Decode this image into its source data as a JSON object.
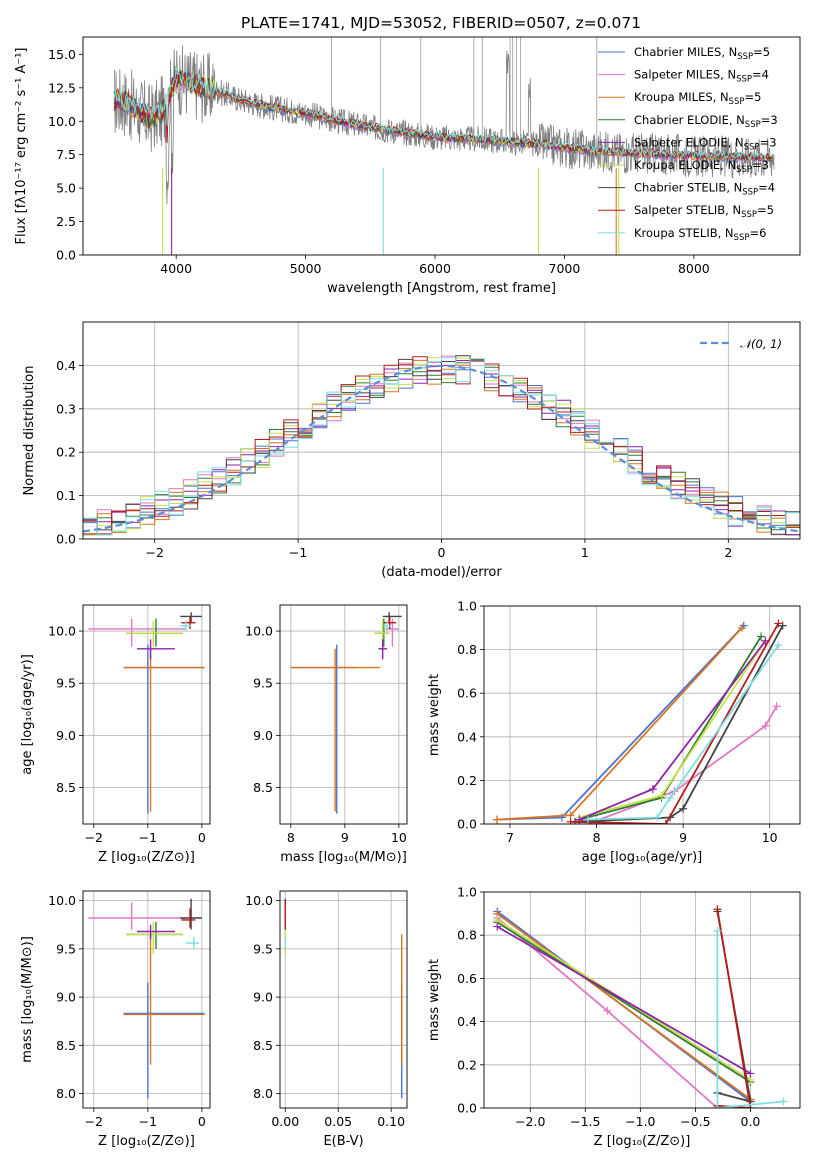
{
  "title": "PLATE=1741, MJD=53052, FIBERID=0507, z=0.071",
  "colors": {
    "Chabrier MILES": "#4c72d8",
    "Salpeter MILES": "#e377c2",
    "Kroupa MILES": "#d8751f",
    "Chabrier ELODIE": "#2e7d32",
    "Salpeter ELODIE": "#8e24aa",
    "Kroupa ELODIE": "#c5e04a",
    "Chabrier STELIB": "#444444",
    "Salpeter STELIB": "#b71c1c",
    "Kroupa STELIB": "#7fdde0"
  },
  "legend_models": [
    {
      "label": "Chabrier MILES, N",
      "sub": "SSP",
      "n": "=5"
    },
    {
      "label": "Salpeter MILES, N",
      "sub": "SSP",
      "n": "=4"
    },
    {
      "label": "Kroupa MILES, N",
      "sub": "SSP",
      "n": "=5"
    },
    {
      "label": "Chabrier ELODIE, N",
      "sub": "SSP",
      "n": "=3"
    },
    {
      "label": "Salpeter ELODIE, N",
      "sub": "SSP",
      "n": "=3"
    },
    {
      "label": "Kroupa ELODIE, N",
      "sub": "SSP",
      "n": "=3"
    },
    {
      "label": "Chabrier STELIB, N",
      "sub": "SSP",
      "n": "=4"
    },
    {
      "label": "Salpeter STELIB, N",
      "sub": "SSP",
      "n": "=5"
    },
    {
      "label": "Kroupa STELIB, N",
      "sub": "SSP",
      "n": "=6"
    }
  ],
  "chart_data": [
    {
      "id": "spectrum",
      "type": "line",
      "title": "PLATE=1741, MJD=53052, FIBERID=0507, z=0.071",
      "xlabel": "wavelength [Angstrom, rest frame]",
      "ylabel": "Flux [fλ10⁻¹⁷ erg cm⁻² s⁻¹ A⁻¹]",
      "xlim": [
        3280,
        8820
      ],
      "ylim": [
        0,
        16.3
      ],
      "xticks": [
        4000,
        5000,
        6000,
        7000,
        8000
      ],
      "yticks": [
        0.0,
        2.5,
        5.0,
        7.5,
        10.0,
        12.5,
        15.0
      ],
      "continuum": [
        [
          3600,
          11.5
        ],
        [
          3700,
          10.8
        ],
        [
          3800,
          10.2
        ],
        [
          3900,
          10.8
        ],
        [
          4000,
          13.2
        ],
        [
          4100,
          12.9
        ],
        [
          4300,
          12.3
        ],
        [
          4500,
          11.6
        ],
        [
          4700,
          11.1
        ],
        [
          5000,
          10.6
        ],
        [
          5300,
          9.9
        ],
        [
          5600,
          9.4
        ],
        [
          6000,
          8.8
        ],
        [
          6400,
          8.6
        ],
        [
          6800,
          8.3
        ],
        [
          7200,
          7.8
        ],
        [
          7600,
          7.6
        ],
        [
          8000,
          7.4
        ],
        [
          8500,
          7.3
        ]
      ],
      "grid": false,
      "legend": "right"
    },
    {
      "id": "residuals",
      "type": "line",
      "xlabel": "(data-model)/error",
      "ylabel": "Normed distribution",
      "xlim": [
        -2.5,
        2.5
      ],
      "ylim": [
        0,
        0.5
      ],
      "xticks": [
        -2,
        -1,
        0,
        1,
        2
      ],
      "yticks": [
        0.0,
        0.1,
        0.2,
        0.3,
        0.4
      ],
      "normal_label": "𝒩(0, 1)",
      "grid": true,
      "legend": "top-right"
    },
    {
      "id": "age_vs_Z",
      "type": "scatter",
      "xlabel": "Z [log₁₀(Z/Z⊙)]",
      "ylabel": "age  [log₁₀(age/yr)]",
      "xlim": [
        -2.2,
        0.15
      ],
      "ylim": [
        8.15,
        10.25
      ],
      "xticks": [
        -2,
        -1,
        0
      ],
      "yticks": [
        8.5,
        9.0,
        9.5,
        10.0
      ],
      "points": [
        {
          "m": "Chabrier MILES",
          "x": -1.0,
          "y": 9.65,
          "xe": [
            -1.45,
            0.05
          ],
          "ye": [
            8.25,
            9.87
          ]
        },
        {
          "m": "Kroupa MILES",
          "x": -0.95,
          "y": 9.65,
          "xe": [
            -1.45,
            0.05
          ],
          "ye": [
            8.27,
            9.85
          ]
        },
        {
          "m": "Salpeter MILES",
          "x": -1.3,
          "y": 10.02,
          "xe": [
            -2.1,
            -0.3
          ],
          "ye": [
            9.85,
            10.12
          ]
        },
        {
          "m": "Chabrier ELODIE",
          "x": -0.85,
          "y": 9.98,
          "xe": [
            -1.4,
            -0.35
          ],
          "ye": [
            9.85,
            10.12
          ]
        },
        {
          "m": "Kroupa ELODIE",
          "x": -0.9,
          "y": 9.98,
          "xe": [
            -1.4,
            -0.35
          ],
          "ye": [
            9.85,
            10.1
          ]
        },
        {
          "m": "Salpeter ELODIE",
          "x": -0.95,
          "y": 9.83,
          "xe": [
            -1.2,
            -0.5
          ],
          "ye": [
            9.73,
            9.92
          ]
        },
        {
          "m": "Chabrier STELIB",
          "x": -0.2,
          "y": 10.14,
          "xe": [
            -0.4,
            0.0
          ],
          "ye": [
            10.08,
            10.18
          ]
        },
        {
          "m": "Salpeter STELIB",
          "x": -0.22,
          "y": 10.08,
          "xe": [
            -0.38,
            -0.12
          ],
          "ye": [
            10.02,
            10.14
          ]
        },
        {
          "m": "Kroupa STELIB",
          "x": -0.3,
          "y": 10.05,
          "xe": [
            -0.4,
            -0.2
          ],
          "ye": [
            10.0,
            10.1
          ]
        }
      ]
    },
    {
      "id": "age_vs_mass",
      "type": "scatter",
      "xlabel": "mass [log₁₀(M/M⊙)]",
      "xlim": [
        7.8,
        10.15
      ],
      "ylim": [
        8.15,
        10.25
      ],
      "xticks": [
        8,
        9,
        10
      ],
      "yticks": [
        8.5,
        9.0,
        9.5,
        10.0
      ],
      "points": [
        {
          "m": "Chabrier MILES",
          "x": 8.85,
          "y": 9.65,
          "xe": [
            8.0,
            9.2
          ],
          "ye": [
            8.25,
            9.87
          ]
        },
        {
          "m": "Kroupa MILES",
          "x": 8.82,
          "y": 9.65,
          "xe": [
            8.0,
            9.65
          ],
          "ye": [
            8.27,
            9.83
          ]
        },
        {
          "m": "Salpeter MILES",
          "x": 9.88,
          "y": 10.02,
          "xe": [
            9.75,
            10.0
          ],
          "ye": [
            9.85,
            10.12
          ]
        },
        {
          "m": "Chabrier ELODIE",
          "x": 9.72,
          "y": 9.98,
          "xe": [
            9.55,
            9.82
          ],
          "ye": [
            9.85,
            10.12
          ]
        },
        {
          "m": "Kroupa ELODIE",
          "x": 9.7,
          "y": 9.98,
          "xe": [
            9.55,
            9.82
          ],
          "ye": [
            9.85,
            10.1
          ]
        },
        {
          "m": "Salpeter ELODIE",
          "x": 9.7,
          "y": 9.83,
          "xe": [
            9.62,
            9.78
          ],
          "ye": [
            9.73,
            9.92
          ]
        },
        {
          "m": "Chabrier STELIB",
          "x": 9.82,
          "y": 10.14,
          "xe": [
            9.7,
            10.05
          ],
          "ye": [
            10.08,
            10.18
          ]
        },
        {
          "m": "Salpeter STELIB",
          "x": 9.83,
          "y": 10.08,
          "xe": [
            9.72,
            9.95
          ],
          "ye": [
            10.02,
            10.14
          ]
        },
        {
          "m": "Kroupa STELIB",
          "x": 9.78,
          "y": 10.05,
          "xe": [
            9.72,
            9.85
          ],
          "ye": [
            10.0,
            10.1
          ]
        }
      ]
    },
    {
      "id": "weight_vs_age",
      "type": "line",
      "xlabel": "age  [log₁₀(age/yr)]",
      "ylabel": "mass weight",
      "xlim": [
        6.7,
        10.35
      ],
      "ylim": [
        0,
        1.0
      ],
      "xticks": [
        7,
        8,
        9,
        10
      ],
      "yticks": [
        0.0,
        0.2,
        0.4,
        0.6,
        0.8,
        1.0
      ],
      "series": [
        {
          "m": "Chabrier MILES",
          "x": [
            6.85,
            7.6,
            9.7
          ],
          "y": [
            0.02,
            0.03,
            0.91
          ]
        },
        {
          "m": "Kroupa MILES",
          "x": [
            6.85,
            7.7,
            9.68
          ],
          "y": [
            0.02,
            0.04,
            0.9
          ]
        },
        {
          "m": "Salpeter MILES",
          "x": [
            7.9,
            8.9,
            9.95,
            10.08
          ],
          "y": [
            0.0,
            0.15,
            0.45,
            0.54
          ]
        },
        {
          "m": "Chabrier ELODIE",
          "x": [
            7.8,
            8.75,
            9.9
          ],
          "y": [
            0.02,
            0.12,
            0.86
          ]
        },
        {
          "m": "Kroupa ELODIE",
          "x": [
            7.8,
            8.75,
            9.95
          ],
          "y": [
            0.03,
            0.13,
            0.84
          ]
        },
        {
          "m": "Salpeter ELODIE",
          "x": [
            7.8,
            8.65,
            9.95
          ],
          "y": [
            0.02,
            0.16,
            0.84
          ]
        },
        {
          "m": "Chabrier STELIB",
          "x": [
            7.75,
            8.85,
            9.0,
            10.15
          ],
          "y": [
            0.01,
            0.03,
            0.07,
            0.91
          ]
        },
        {
          "m": "Salpeter STELIB",
          "x": [
            7.7,
            8.8,
            10.1
          ],
          "y": [
            0.01,
            0.0,
            0.92
          ]
        },
        {
          "m": "Kroupa STELIB",
          "x": [
            7.9,
            8.7,
            8.85,
            10.1
          ],
          "y": [
            0.02,
            0.03,
            0.12,
            0.82
          ]
        }
      ]
    },
    {
      "id": "mass_vs_Z",
      "type": "scatter",
      "xlabel": "Z [log₁₀(Z/Z⊙)]",
      "ylabel": "mass [log₁₀(M/M⊙)]",
      "xlim": [
        -2.2,
        0.15
      ],
      "ylim": [
        7.85,
        10.1
      ],
      "xticks": [
        -2,
        -1,
        0
      ],
      "yticks": [
        8.0,
        8.5,
        9.0,
        9.5,
        10.0
      ],
      "points": [
        {
          "m": "Chabrier MILES",
          "x": -1.0,
          "y": 8.83,
          "xe": [
            -1.45,
            0.05
          ],
          "ye": [
            7.95,
            9.15
          ]
        },
        {
          "m": "Kroupa MILES",
          "x": -0.95,
          "y": 8.82,
          "xe": [
            -1.45,
            0.05
          ],
          "ye": [
            8.3,
            9.65
          ]
        },
        {
          "m": "Salpeter MILES",
          "x": -1.3,
          "y": 9.82,
          "xe": [
            -2.1,
            -0.3
          ],
          "ye": [
            9.7,
            9.98
          ]
        },
        {
          "m": "Chabrier ELODIE",
          "x": -0.85,
          "y": 9.65,
          "xe": [
            -1.4,
            -0.35
          ],
          "ye": [
            9.5,
            9.78
          ]
        },
        {
          "m": "Kroupa ELODIE",
          "x": -0.9,
          "y": 9.65,
          "xe": [
            -1.4,
            -0.35
          ],
          "ye": [
            9.45,
            9.78
          ]
        },
        {
          "m": "Salpeter ELODIE",
          "x": -0.95,
          "y": 9.68,
          "xe": [
            -1.2,
            -0.5
          ],
          "ye": [
            9.6,
            9.75
          ]
        },
        {
          "m": "Chabrier STELIB",
          "x": -0.2,
          "y": 9.82,
          "xe": [
            -0.4,
            0.0
          ],
          "ye": [
            9.7,
            10.02
          ]
        },
        {
          "m": "Salpeter STELIB",
          "x": -0.22,
          "y": 9.8,
          "xe": [
            -0.38,
            -0.12
          ],
          "ye": [
            9.72,
            9.92
          ]
        },
        {
          "m": "Kroupa STELIB",
          "x": -0.15,
          "y": 9.56,
          "xe": [
            -0.3,
            -0.05
          ],
          "ye": [
            9.5,
            9.62
          ]
        }
      ]
    },
    {
      "id": "mass_vs_ebv",
      "type": "scatter",
      "xlabel": "E(B-V)",
      "xlim": [
        -0.005,
        0.115
      ],
      "ylim": [
        7.85,
        10.1
      ],
      "xticks": [
        0.0,
        0.05,
        0.1
      ],
      "xticklabels": [
        "0.00",
        "0.05",
        "0.10"
      ],
      "yticks": [
        8.0,
        8.5,
        9.0,
        9.5,
        10.0
      ],
      "points": [
        {
          "m": "Chabrier MILES",
          "x": 0.11,
          "y": 8.83,
          "ye": [
            7.95,
            9.15
          ]
        },
        {
          "m": "Kroupa MILES",
          "x": 0.11,
          "y": 8.82,
          "ye": [
            8.3,
            9.65
          ]
        },
        {
          "m": "Salpeter MILES",
          "x": 0.0,
          "y": 9.82,
          "ye": [
            9.7,
            9.98
          ]
        },
        {
          "m": "Kroupa ELODIE",
          "x": 0.0,
          "y": 9.62,
          "ye": [
            9.45,
            9.78
          ]
        },
        {
          "m": "Chabrier STELIB",
          "x": 0.0,
          "y": 9.85,
          "ye": [
            9.7,
            10.02
          ]
        },
        {
          "m": "Salpeter STELIB",
          "x": 0.0,
          "y": 9.82,
          "ye": [
            9.72,
            10.0
          ]
        },
        {
          "m": "Kroupa STELIB",
          "x": 0.0,
          "y": 9.58,
          "ye": [
            9.5,
            9.62
          ]
        }
      ]
    },
    {
      "id": "weight_vs_Z",
      "type": "line",
      "xlabel": "Z [log₁₀(Z/Z⊙)]",
      "ylabel": "mass weight",
      "xlim": [
        -2.42,
        0.45
      ],
      "ylim": [
        0,
        1.0
      ],
      "xticks": [
        -2.0,
        -1.5,
        -1.0,
        -0.5,
        0.0
      ],
      "xticklabels": [
        "−2.0",
        "−1.5",
        "−1.0",
        "−0.5",
        "0.0"
      ],
      "yticks": [
        0.0,
        0.2,
        0.4,
        0.6,
        0.8,
        1.0
      ],
      "series": [
        {
          "m": "Chabrier MILES",
          "x": [
            -2.3,
            0.0
          ],
          "y": [
            0.91,
            0.03
          ]
        },
        {
          "m": "Kroupa MILES",
          "x": [
            -2.3,
            0.0
          ],
          "y": [
            0.9,
            0.04
          ]
        },
        {
          "m": "Salpeter MILES",
          "x": [
            -2.3,
            -1.3,
            -0.3
          ],
          "y": [
            0.88,
            0.45,
            0.0
          ]
        },
        {
          "m": "Chabrier ELODIE",
          "x": [
            -2.3,
            0.0
          ],
          "y": [
            0.86,
            0.12
          ]
        },
        {
          "m": "Kroupa ELODIE",
          "x": [
            -2.3,
            0.0
          ],
          "y": [
            0.87,
            0.13
          ]
        },
        {
          "m": "Salpeter ELODIE",
          "x": [
            -2.3,
            0.0
          ],
          "y": [
            0.84,
            0.16
          ]
        },
        {
          "m": "Chabrier STELIB",
          "x": [
            -0.3,
            0.0,
            -0.3
          ],
          "y": [
            0.91,
            0.03,
            0.07
          ]
        },
        {
          "m": "Salpeter STELIB",
          "x": [
            -0.3,
            0.0,
            -0.3
          ],
          "y": [
            0.92,
            0.0,
            0.01
          ]
        },
        {
          "m": "Kroupa STELIB",
          "x": [
            -0.3,
            -0.3,
            0.3
          ],
          "y": [
            0.82,
            0.0,
            0.03
          ]
        }
      ]
    }
  ]
}
